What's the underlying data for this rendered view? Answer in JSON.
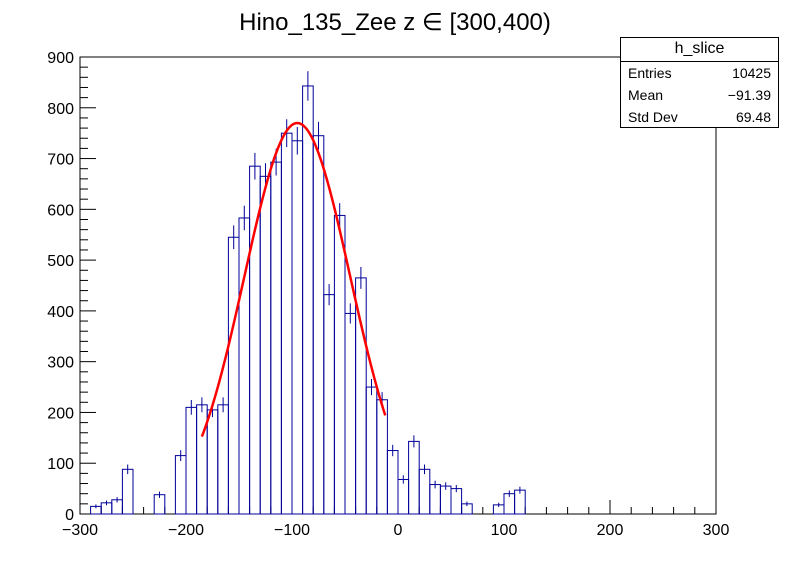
{
  "chart_data": {
    "type": "histogram",
    "title": "Hino_135_Zee z  ∈ [300,400)",
    "xlabel": "",
    "ylabel": "",
    "xlim": [
      -300,
      300
    ],
    "ylim": [
      0,
      900
    ],
    "xticks": [
      "−300",
      "−200",
      "−100",
      "0",
      "100",
      "200",
      "300"
    ],
    "yticks": [
      "0",
      "100",
      "200",
      "300",
      "400",
      "500",
      "600",
      "700",
      "800",
      "900"
    ],
    "bin_width": 10,
    "bins_start": -300,
    "values": [
      0,
      15,
      22,
      28,
      88,
      0,
      0,
      38,
      0,
      115,
      210,
      215,
      205,
      215,
      545,
      583,
      685,
      665,
      693,
      750,
      735,
      843,
      745,
      432,
      588,
      395,
      465,
      250,
      225,
      125,
      68,
      143,
      88,
      58,
      55,
      50,
      20,
      0,
      0,
      18,
      40,
      47,
      0,
      0,
      0,
      0,
      0,
      0,
      0,
      0,
      0,
      0,
      0,
      0,
      0,
      0,
      0,
      0,
      0,
      0
    ],
    "fit": {
      "type": "gaussian",
      "amplitude": 770,
      "mean": -95,
      "sigma": 50,
      "range": [
        -185,
        -12
      ],
      "color": "#ff0000"
    },
    "line_color": "#000099",
    "stats": {
      "name": "h_slice",
      "rows": [
        {
          "label": "Entries",
          "value": "10425"
        },
        {
          "label": "Mean",
          "value": "−91.39"
        },
        {
          "label": "Std Dev",
          "value": "69.48"
        }
      ]
    }
  }
}
